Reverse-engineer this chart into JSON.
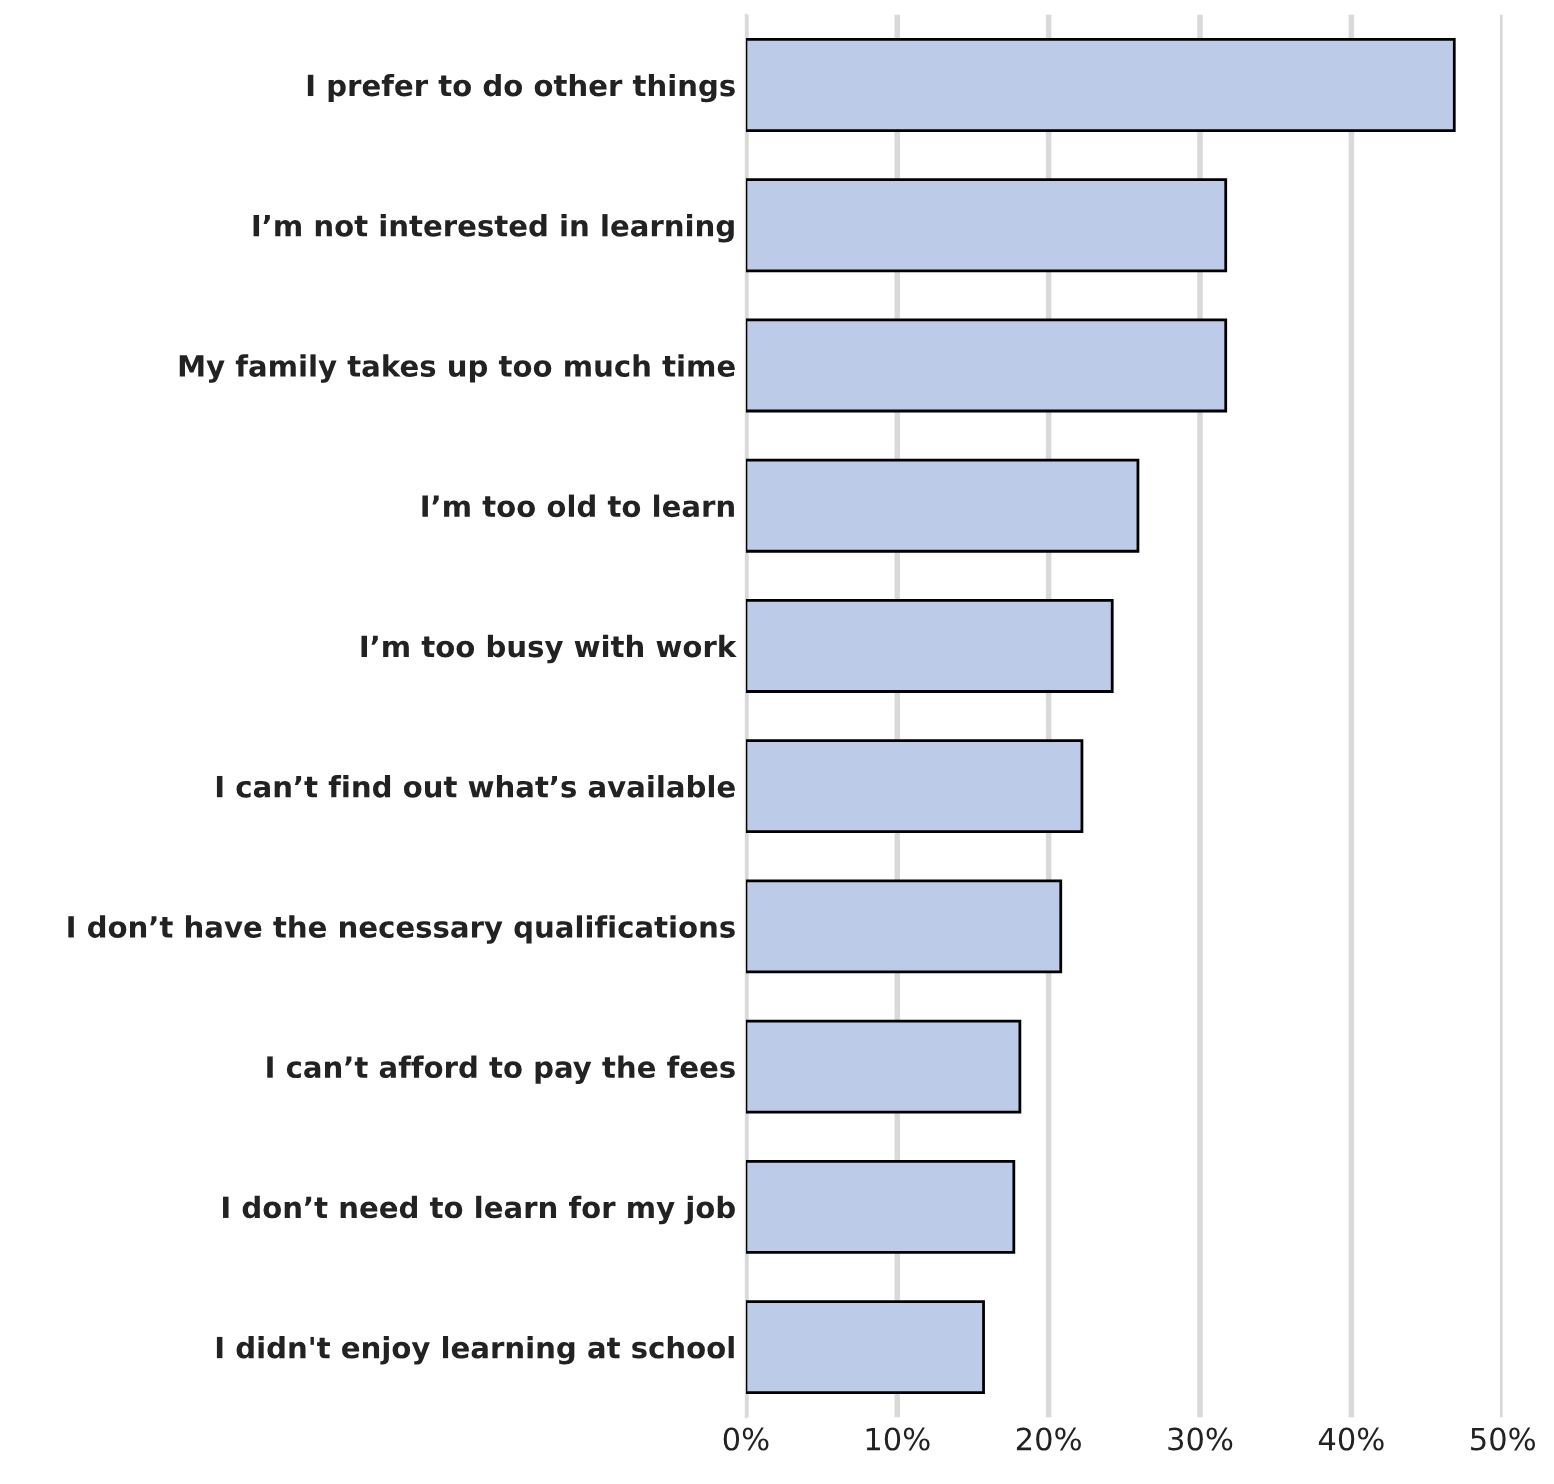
{
  "chart_data": {
    "type": "bar",
    "orientation": "horizontal",
    "categories": [
      "I prefer to do other things",
      "I’m not interested in learning",
      "My family takes up too much time",
      "I’m too old to learn",
      "I’m too busy with work",
      "I can’t find out what’s available",
      "I don’t have the necessary qualifications",
      "I can’t afford to pay the fees",
      "I don’t need to learn for my job",
      "I didn't enjoy learning at school"
    ],
    "values": [
      46.8,
      31.7,
      31.7,
      25.9,
      24.2,
      22.2,
      20.8,
      18.1,
      17.7,
      15.7
    ],
    "color": "#bccbe8",
    "xlim": [
      0,
      50
    ],
    "xticks": [
      {
        "value": 0,
        "label": "0%"
      },
      {
        "value": 10,
        "label": "10%"
      },
      {
        "value": 20,
        "label": "20%"
      },
      {
        "value": 30,
        "label": "30%"
      },
      {
        "value": 40,
        "label": "40%"
      },
      {
        "value": 50,
        "label": "50%"
      }
    ],
    "grid": "x"
  }
}
